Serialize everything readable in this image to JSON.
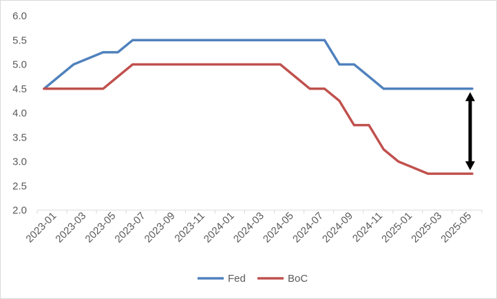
{
  "chart_data": {
    "type": "line",
    "title": "",
    "xlabel": "",
    "ylabel": "",
    "ylim": [
      2.0,
      6.0
    ],
    "yticks": [
      "2.0",
      "2.5",
      "3.0",
      "3.5",
      "4.0",
      "4.5",
      "5.0",
      "5.5",
      "6.0"
    ],
    "categories": [
      "2023-01",
      "2023-03",
      "2023-05",
      "2023-07",
      "2023-09",
      "2023-11",
      "2024-01",
      "2024-03",
      "2024-05",
      "2024-07",
      "2024-09",
      "2024-11",
      "2025-01",
      "2025-03",
      "2025-05"
    ],
    "x": [
      "2023-01",
      "2023-02",
      "2023-03",
      "2023-04",
      "2023-05",
      "2023-06",
      "2023-07",
      "2023-08",
      "2023-09",
      "2023-10",
      "2023-11",
      "2023-12",
      "2024-01",
      "2024-02",
      "2024-03",
      "2024-04",
      "2024-05",
      "2024-06",
      "2024-07",
      "2024-08",
      "2024-09",
      "2024-10",
      "2024-11",
      "2024-12",
      "2025-01",
      "2025-02",
      "2025-03",
      "2025-04",
      "2025-05",
      "2025-06"
    ],
    "series": [
      {
        "name": "Fed",
        "color": "#4f81bd",
        "values": [
          4.5,
          4.75,
          5.0,
          5.125,
          5.25,
          5.25,
          5.5,
          5.5,
          5.5,
          5.5,
          5.5,
          5.5,
          5.5,
          5.5,
          5.5,
          5.5,
          5.5,
          5.5,
          5.5,
          5.5,
          5.0,
          5.0,
          4.75,
          4.5,
          4.5,
          4.5,
          4.5,
          4.5,
          4.5,
          4.5
        ]
      },
      {
        "name": "BoC",
        "color": "#c0504d",
        "values": [
          4.5,
          4.5,
          4.5,
          4.5,
          4.5,
          4.75,
          5.0,
          5.0,
          5.0,
          5.0,
          5.0,
          5.0,
          5.0,
          5.0,
          5.0,
          5.0,
          5.0,
          4.75,
          4.5,
          4.5,
          4.25,
          3.75,
          3.75,
          3.25,
          3.0,
          2.875,
          2.75,
          2.75,
          2.75,
          2.75
        ]
      }
    ],
    "annotation": {
      "type": "double-arrow",
      "x": "2025-06",
      "from": 4.5,
      "to": 2.75,
      "color": "#000000"
    },
    "grid": false,
    "legend": {
      "position": "bottom",
      "items": [
        "Fed",
        "BoC"
      ]
    }
  }
}
